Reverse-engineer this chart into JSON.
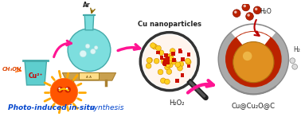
{
  "background_color": "#ffffff",
  "text_photoinduced_bold": "Photo-induced in-situ",
  "text_photoinduced_italic": " synthesis",
  "text_cu2plus": "Cu²⁺",
  "text_ch3oh": "CH₃OH",
  "text_ar": "Ar",
  "text_cu_nano": "Cu nanoparticles",
  "text_h2o2": "H₂O₂",
  "text_h2o": "H₂O",
  "text_h2": "H₂",
  "text_product": "Cu@Cu₂O@C",
  "magenta": "#FF1493",
  "red": "#CC1100",
  "orange_arrow": "#FF6600",
  "beaker_fill": "#5ECECE",
  "beaker_edge": "#44AAAA",
  "reactor_fill": "#7DDEDE",
  "reactor_edge": "#44AAAA",
  "hotplate_fill": "#C8A050",
  "sun_body": "#FF5500",
  "sun_ray": "#FFAA00",
  "sun_eye": "#CC2200",
  "dot_yellow": "#FFD020",
  "dot_yellow_edge": "#CC8800",
  "dot_red": "#CC1100",
  "sphere_grey": "#AAAAAA",
  "sphere_grey_dark": "#888888",
  "sphere_red": "#BB2200",
  "sphere_gold": "#E09020",
  "sphere_gold_edge": "#B07010",
  "water_red": "#BB2200",
  "blue_text": "#0044CC"
}
